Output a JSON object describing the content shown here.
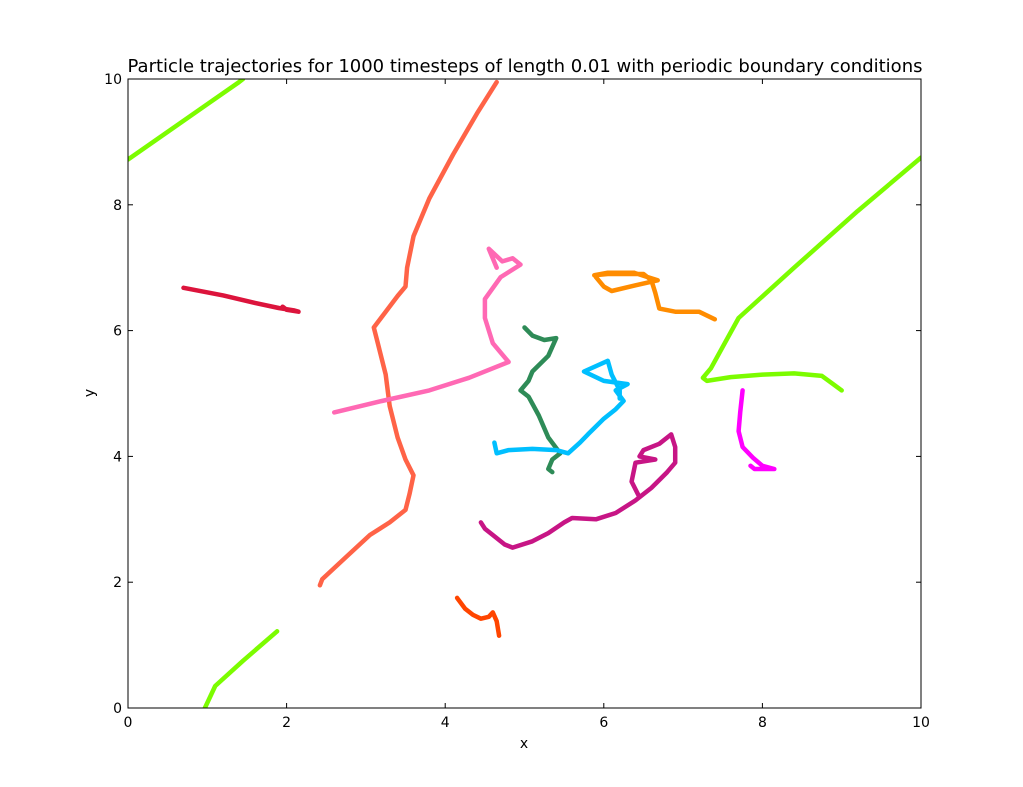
{
  "chart_data": {
    "type": "line",
    "title": "Particle trajectories for 1000 timesteps of length 0.01 with periodic boundary conditions",
    "xlabel": "x",
    "ylabel": "y",
    "xlim": [
      0,
      10
    ],
    "ylim": [
      0,
      10
    ],
    "xticks": [
      "0",
      "2",
      "4",
      "6",
      "8",
      "10"
    ],
    "yticks": [
      "0",
      "2",
      "4",
      "6",
      "8",
      "10"
    ],
    "grid": false,
    "series": [
      {
        "color": "#DC143C",
        "segments": [
          [
            [
              0.7,
              6.68
            ],
            [
              1.2,
              6.56
            ],
            [
              1.6,
              6.44
            ],
            [
              1.9,
              6.36
            ],
            [
              2.1,
              6.32
            ],
            [
              2.15,
              6.3
            ],
            [
              2.0,
              6.33
            ],
            [
              1.95,
              6.38
            ]
          ]
        ]
      },
      {
        "color": "#FF6347",
        "segments": [
          [
            [
              4.65,
              9.95
            ],
            [
              4.4,
              9.45
            ],
            [
              4.1,
              8.8
            ],
            [
              3.8,
              8.1
            ],
            [
              3.6,
              7.5
            ],
            [
              3.52,
              7.0
            ],
            [
              3.5,
              6.7
            ],
            [
              3.4,
              6.55
            ],
            [
              3.1,
              6.05
            ],
            [
              3.15,
              5.8
            ],
            [
              3.25,
              5.3
            ],
            [
              3.3,
              4.8
            ],
            [
              3.4,
              4.3
            ],
            [
              3.5,
              3.95
            ],
            [
              3.6,
              3.7
            ],
            [
              3.55,
              3.4
            ],
            [
              3.5,
              3.15
            ],
            [
              3.3,
              2.95
            ],
            [
              3.05,
              2.75
            ],
            [
              2.75,
              2.4
            ],
            [
              2.45,
              2.05
            ],
            [
              2.42,
              1.95
            ]
          ]
        ]
      },
      {
        "color": "#7CFC00",
        "segments": [
          [
            [
              0,
              8.72
            ],
            [
              1.0,
              9.6
            ],
            [
              1.4,
              9.95
            ],
            [
              1.45,
              10.0
            ]
          ],
          [
            [
              1.88,
              1.22
            ],
            [
              1.45,
              0.75
            ],
            [
              1.1,
              0.35
            ],
            [
              0.97,
              0.0
            ]
          ],
          [
            [
              10.0,
              8.75
            ],
            [
              9.2,
              7.9
            ],
            [
              8.4,
              7.0
            ],
            [
              7.7,
              6.2
            ],
            [
              7.35,
              5.4
            ],
            [
              7.25,
              5.25
            ],
            [
              7.3,
              5.2
            ],
            [
              7.6,
              5.26
            ],
            [
              8.0,
              5.3
            ],
            [
              8.4,
              5.32
            ],
            [
              8.75,
              5.28
            ],
            [
              9.0,
              5.05
            ]
          ]
        ]
      },
      {
        "color": "#FF69B4",
        "segments": [
          [
            [
              2.6,
              4.7
            ],
            [
              3.2,
              4.88
            ],
            [
              3.8,
              5.05
            ],
            [
              4.3,
              5.25
            ],
            [
              4.8,
              5.5
            ],
            [
              4.6,
              5.8
            ],
            [
              4.5,
              6.2
            ],
            [
              4.5,
              6.5
            ],
            [
              4.7,
              6.85
            ],
            [
              4.95,
              7.05
            ],
            [
              4.85,
              7.15
            ],
            [
              4.72,
              7.1
            ],
            [
              4.55,
              7.3
            ],
            [
              4.65,
              7.0
            ]
          ]
        ]
      },
      {
        "color": "#FF8C00",
        "segments": [
          [
            [
              5.9,
              6.85
            ],
            [
              6.0,
              6.7
            ],
            [
              6.1,
              6.63
            ],
            [
              6.4,
              6.72
            ],
            [
              6.68,
              6.8
            ],
            [
              6.38,
              6.92
            ],
            [
              6.05,
              6.92
            ],
            [
              5.88,
              6.88
            ],
            [
              6.05,
              6.9
            ],
            [
              6.5,
              6.9
            ],
            [
              6.6,
              6.8
            ],
            [
              6.65,
              6.6
            ],
            [
              6.7,
              6.35
            ],
            [
              6.9,
              6.3
            ],
            [
              7.2,
              6.3
            ],
            [
              7.4,
              6.18
            ]
          ]
        ]
      },
      {
        "color": "#2E8B57",
        "segments": [
          [
            [
              5.0,
              6.05
            ],
            [
              5.1,
              5.92
            ],
            [
              5.25,
              5.85
            ],
            [
              5.4,
              5.88
            ],
            [
              5.3,
              5.6
            ],
            [
              5.1,
              5.35
            ],
            [
              5.05,
              5.2
            ],
            [
              4.95,
              5.05
            ],
            [
              5.05,
              4.95
            ],
            [
              5.18,
              4.65
            ],
            [
              5.3,
              4.3
            ],
            [
              5.45,
              4.05
            ],
            [
              5.35,
              3.95
            ],
            [
              5.3,
              3.8
            ],
            [
              5.35,
              3.75
            ]
          ]
        ]
      },
      {
        "color": "#00BFFF",
        "segments": [
          [
            [
              4.62,
              4.22
            ],
            [
              4.65,
              4.05
            ],
            [
              4.8,
              4.1
            ],
            [
              5.1,
              4.12
            ],
            [
              5.4,
              4.1
            ],
            [
              5.55,
              4.05
            ],
            [
              5.7,
              4.22
            ],
            [
              5.8,
              4.35
            ],
            [
              6.0,
              4.6
            ],
            [
              6.15,
              4.75
            ],
            [
              6.25,
              4.88
            ],
            [
              6.15,
              5.05
            ],
            [
              6.3,
              5.15
            ],
            [
              6.0,
              5.2
            ],
            [
              5.75,
              5.35
            ],
            [
              6.05,
              5.52
            ],
            [
              6.1,
              5.3
            ],
            [
              6.2,
              5.05
            ],
            [
              6.2,
              4.92
            ]
          ]
        ]
      },
      {
        "color": "#C71585",
        "segments": [
          [
            [
              4.45,
              2.95
            ],
            [
              4.5,
              2.85
            ],
            [
              4.6,
              2.75
            ],
            [
              4.75,
              2.6
            ],
            [
              4.85,
              2.55
            ],
            [
              5.1,
              2.65
            ],
            [
              5.3,
              2.78
            ],
            [
              5.5,
              2.95
            ],
            [
              5.6,
              3.02
            ],
            [
              5.9,
              3.0
            ],
            [
              6.15,
              3.1
            ],
            [
              6.4,
              3.3
            ],
            [
              6.6,
              3.5
            ],
            [
              6.8,
              3.75
            ],
            [
              6.9,
              3.9
            ],
            [
              6.9,
              4.15
            ],
            [
              6.85,
              4.35
            ],
            [
              6.7,
              4.2
            ],
            [
              6.5,
              4.1
            ],
            [
              6.45,
              4.0
            ],
            [
              6.65,
              3.95
            ],
            [
              6.4,
              3.9
            ],
            [
              6.35,
              3.6
            ],
            [
              6.45,
              3.35
            ]
          ]
        ]
      },
      {
        "color": "#FF00FF",
        "segments": [
          [
            [
              7.75,
              5.05
            ],
            [
              7.72,
              4.7
            ],
            [
              7.7,
              4.4
            ],
            [
              7.75,
              4.15
            ],
            [
              7.88,
              3.98
            ],
            [
              8.0,
              3.85
            ],
            [
              8.15,
              3.8
            ],
            [
              7.9,
              3.8
            ],
            [
              7.85,
              3.85
            ]
          ]
        ]
      },
      {
        "color": "#FF4500",
        "segments": [
          [
            [
              4.15,
              1.75
            ],
            [
              4.25,
              1.58
            ],
            [
              4.35,
              1.48
            ],
            [
              4.45,
              1.42
            ],
            [
              4.55,
              1.45
            ],
            [
              4.6,
              1.52
            ],
            [
              4.65,
              1.38
            ],
            [
              4.68,
              1.15
            ]
          ]
        ]
      }
    ]
  }
}
